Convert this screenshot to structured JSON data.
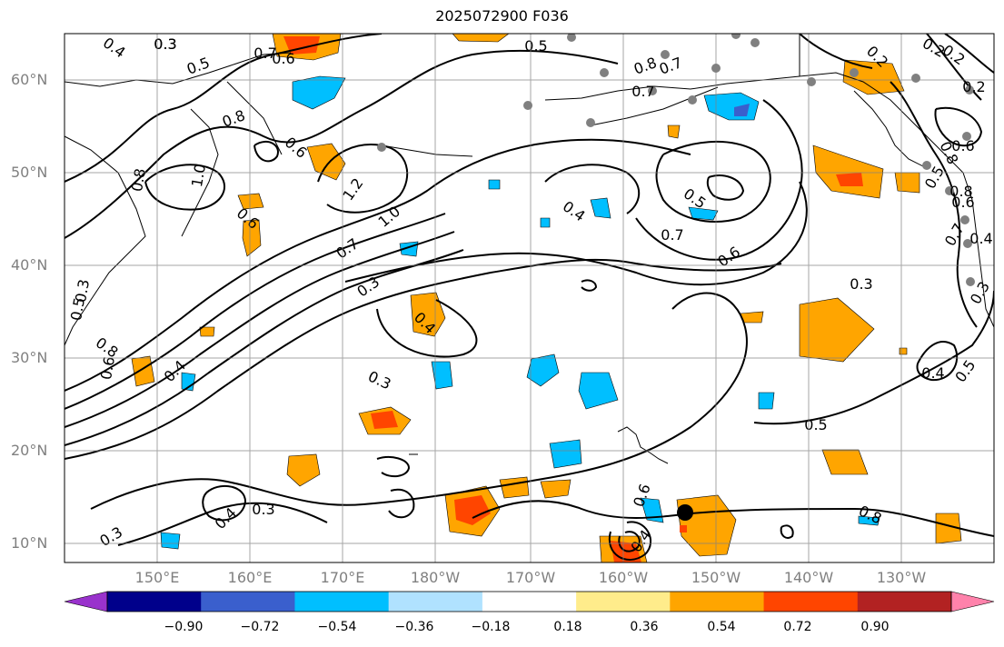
{
  "title": "2025072900 F036",
  "lat_labels": [
    "60°N",
    "50°N",
    "40°N",
    "30°N",
    "20°N",
    "10°N"
  ],
  "lon_labels": [
    "150°E",
    "160°E",
    "170°E",
    "180°W",
    "170°W",
    "160°W",
    "150°W",
    "140°W",
    "130°W"
  ],
  "colorbar": {
    "ticks": [
      "−0.90",
      "−0.72",
      "−0.54",
      "−0.36",
      "−0.18",
      "0.18",
      "0.36",
      "0.54",
      "0.72",
      "0.90"
    ],
    "colors": [
      "#9932cc",
      "#00008b",
      "#3a5fcd",
      "#00bfff",
      "#b0e2ff",
      "#ffffff",
      "#ffec8b",
      "#ffa500",
      "#ff4500",
      "#b22222",
      "#ff82ab"
    ]
  },
  "contour_labels": [
    "0.3",
    "0.4",
    "0.5",
    "0.6",
    "0.7",
    "0.8",
    "0.8",
    "0.6",
    "0.8",
    "0.6",
    "1.0",
    "1.2",
    "1.0",
    "0.7",
    "0.3",
    "0.4",
    "0.5",
    "0.7",
    "0.7",
    "0.6",
    "0.3",
    "0.5",
    "0.7",
    "0.8",
    "0.8",
    "0.6",
    "0.3",
    "0.5",
    "0.4",
    "0.3",
    "0.4",
    "0.5",
    "0.4",
    "0.6",
    "0.8",
    "0.4",
    "0.3",
    "0.3",
    "0.4",
    "0.5",
    "0.2",
    "0.2",
    "0.2",
    "0.2",
    "0.7",
    "0.5",
    "0.3",
    "0.4",
    "0.3",
    "0.6",
    "0.8",
    "0.6"
  ]
}
